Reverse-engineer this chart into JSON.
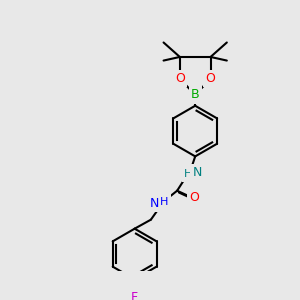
{
  "bg_color": "#e8e8e8",
  "bond_color": "#000000",
  "bond_lw": 1.5,
  "atom_colors": {
    "B": "#00aa00",
    "O": "#ff0000",
    "N": "#0000ff",
    "N2": "#008080",
    "F": "#ff00ff",
    "C_O": "#ff0000"
  },
  "font_size": 9,
  "font_size_small": 7.5
}
